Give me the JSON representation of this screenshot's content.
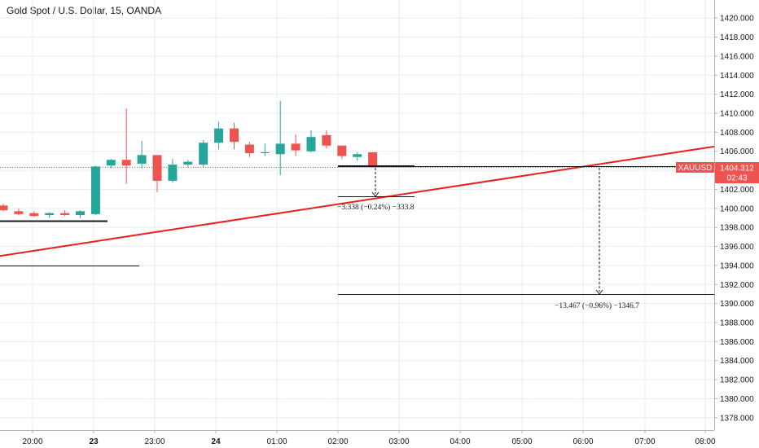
{
  "header": {
    "title": "Gold Spot / U.S. Dollar, 15, OANDA"
  },
  "colors": {
    "up": "#26a69a",
    "down": "#ef5350",
    "trendline": "#ee1c1c",
    "tag": "#ef5350",
    "grid": "#e8eef3"
  },
  "price_tag": {
    "symbol": "XAUUSD",
    "price": "1404.312",
    "countdown": "02:43"
  },
  "annotations": {
    "short_measure": "−3.338 (−0.24%) −333.8",
    "long_measure": "−13.467 (−0.96%) −1346.7"
  },
  "chart_data": {
    "type": "candlestick",
    "title": "Gold Spot / U.S. Dollar, 15, OANDA",
    "ylim": [
      1376.7,
      1421.9
    ],
    "y_ticks": [
      "1378.000",
      "1380.000",
      "1382.000",
      "1384.000",
      "1386.000",
      "1388.000",
      "1390.000",
      "1392.000",
      "1394.000",
      "1396.000",
      "1398.000",
      "1400.000",
      "1402.000",
      "1404.000",
      "1406.000",
      "1408.000",
      "1410.000",
      "1412.000",
      "1414.000",
      "1416.000",
      "1418.000",
      "1420.000"
    ],
    "x_ticks": [
      {
        "label": "20:00",
        "bold": false
      },
      {
        "label": "23",
        "bold": true
      },
      {
        "label": "23:00",
        "bold": false
      },
      {
        "label": "24",
        "bold": true
      },
      {
        "label": "01:00",
        "bold": false
      },
      {
        "label": "02:00",
        "bold": false
      },
      {
        "label": "03:00",
        "bold": false
      },
      {
        "label": "04:00",
        "bold": false
      },
      {
        "label": "05:00",
        "bold": false
      },
      {
        "label": "06:00",
        "bold": false
      },
      {
        "label": "07:00",
        "bold": false
      },
      {
        "label": "08:00",
        "bold": false
      }
    ],
    "candles": [
      {
        "o": 1400.3,
        "h": 1400.5,
        "l": 1399.7,
        "c": 1399.8
      },
      {
        "o": 1399.7,
        "h": 1400.0,
        "l": 1399.3,
        "c": 1399.4
      },
      {
        "o": 1399.5,
        "h": 1399.7,
        "l": 1399.1,
        "c": 1399.2
      },
      {
        "o": 1399.3,
        "h": 1399.6,
        "l": 1399.0,
        "c": 1399.5
      },
      {
        "o": 1399.5,
        "h": 1399.8,
        "l": 1399.2,
        "c": 1399.3
      },
      {
        "o": 1399.3,
        "h": 1399.8,
        "l": 1399.0,
        "c": 1399.7
      },
      {
        "o": 1399.4,
        "h": 1404.5,
        "l": 1399.3,
        "c": 1404.4
      },
      {
        "o": 1404.5,
        "h": 1405.2,
        "l": 1404.2,
        "c": 1405.1
      },
      {
        "o": 1405.1,
        "h": 1410.5,
        "l": 1402.6,
        "c": 1404.5
      },
      {
        "o": 1404.7,
        "h": 1407.1,
        "l": 1404.2,
        "c": 1405.6
      },
      {
        "o": 1405.6,
        "h": 1405.6,
        "l": 1401.7,
        "c": 1402.9
      },
      {
        "o": 1402.9,
        "h": 1405.2,
        "l": 1402.7,
        "c": 1404.6
      },
      {
        "o": 1404.6,
        "h": 1405.1,
        "l": 1404.3,
        "c": 1404.9
      },
      {
        "o": 1404.6,
        "h": 1407.2,
        "l": 1404.3,
        "c": 1406.9
      },
      {
        "o": 1406.9,
        "h": 1409.1,
        "l": 1406.2,
        "c": 1408.4
      },
      {
        "o": 1408.4,
        "h": 1409.0,
        "l": 1406.2,
        "c": 1407.0
      },
      {
        "o": 1406.7,
        "h": 1407.0,
        "l": 1405.4,
        "c": 1405.8
      },
      {
        "o": 1405.8,
        "h": 1406.8,
        "l": 1405.5,
        "c": 1405.9
      },
      {
        "o": 1405.7,
        "h": 1411.3,
        "l": 1403.5,
        "c": 1406.8
      },
      {
        "o": 1406.8,
        "h": 1407.8,
        "l": 1405.5,
        "c": 1406.1
      },
      {
        "o": 1406.0,
        "h": 1408.2,
        "l": 1405.9,
        "c": 1407.5
      },
      {
        "o": 1407.7,
        "h": 1408.2,
        "l": 1406.3,
        "c": 1406.6
      },
      {
        "o": 1406.6,
        "h": 1406.6,
        "l": 1405.2,
        "c": 1405.5
      },
      {
        "o": 1405.4,
        "h": 1405.9,
        "l": 1405.0,
        "c": 1405.7
      },
      {
        "o": 1405.9,
        "h": 1405.9,
        "l": 1404.3,
        "c": 1404.3
      }
    ],
    "trendline": {
      "y_start": 1395.0,
      "y_end": 1406.5
    },
    "last_price": 1404.312
  }
}
